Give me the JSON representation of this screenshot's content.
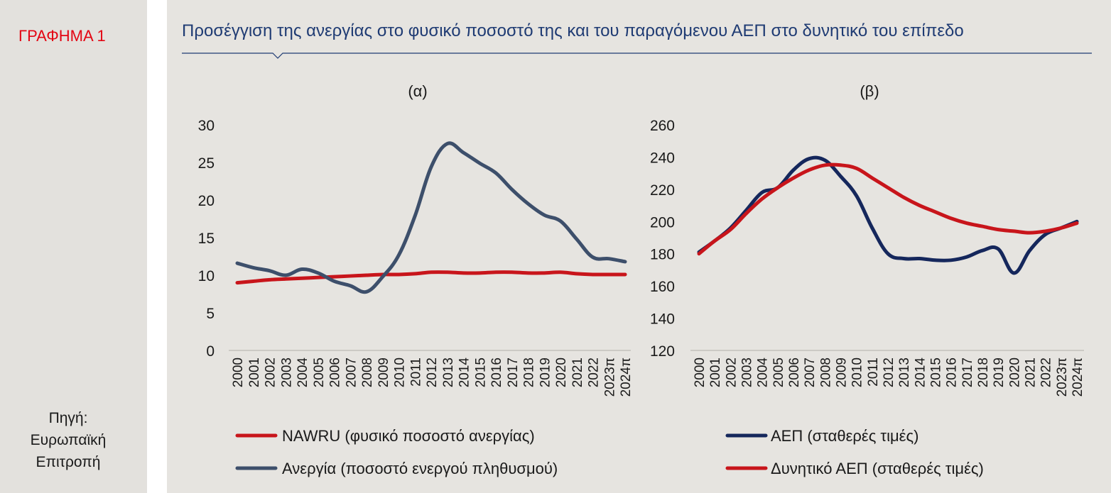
{
  "figure": {
    "label": "ΓΡΑΦΗΜΑ 1",
    "title": "Προσέγγιση της ανεργίας στο φυσικό ποσοστό της και του παραγόμενου ΑΕΠ στο δυνητικό του επίπεδο",
    "source": [
      "Πηγή:",
      "Ευρωπαϊκή",
      "Επιτροπή"
    ]
  },
  "colors": {
    "red": "#c8151b",
    "slate": "#3d4f6b",
    "navy": "#15275c",
    "title": "#1f3b73",
    "label_red": "#e30613"
  },
  "chart_data": [
    {
      "type": "line",
      "title": "(α)",
      "x": [
        "2000",
        "2001",
        "2002",
        "2003",
        "2004",
        "2005",
        "2006",
        "2007",
        "2008",
        "2009",
        "2010",
        "2011",
        "2012",
        "2013",
        "2014",
        "2015",
        "2016",
        "2017",
        "2018",
        "2019",
        "2020",
        "2021",
        "2022",
        "2023π",
        "2024π"
      ],
      "series": [
        {
          "name": "NAWRU (φυσικό ποσοστό ανεργίας)",
          "color": "#c8151b",
          "values": [
            9.0,
            9.2,
            9.4,
            9.5,
            9.6,
            9.7,
            9.8,
            9.9,
            10.0,
            10.1,
            10.1,
            10.2,
            10.4,
            10.4,
            10.3,
            10.3,
            10.4,
            10.4,
            10.3,
            10.3,
            10.4,
            10.2,
            10.1,
            10.1,
            10.1
          ]
        },
        {
          "name": "Ανεργία (ποσοστό ενεργού πληθυσμού)",
          "color": "#3d4f6b",
          "values": [
            11.6,
            11.0,
            10.6,
            10.0,
            10.8,
            10.3,
            9.2,
            8.6,
            7.8,
            9.8,
            12.7,
            17.9,
            24.4,
            27.5,
            26.3,
            24.9,
            23.6,
            21.4,
            19.5,
            18.0,
            17.2,
            14.8,
            12.4,
            12.2,
            11.8
          ]
        }
      ],
      "ylim": [
        0,
        30
      ],
      "yticks": [
        0,
        5,
        10,
        15,
        20,
        25,
        30
      ]
    },
    {
      "type": "line",
      "title": "(β)",
      "x": [
        "2000",
        "2001",
        "2002",
        "2003",
        "2004",
        "2005",
        "2006",
        "2007",
        "2008",
        "2009",
        "2010",
        "2011",
        "2012",
        "2013",
        "2014",
        "2015",
        "2016",
        "2017",
        "2018",
        "2019",
        "2020",
        "2021",
        "2022",
        "2023π",
        "2024π"
      ],
      "series": [
        {
          "name": "ΑΕΠ (σταθερές τιμές)",
          "color": "#15275c",
          "values": [
            181,
            188,
            196,
            207,
            218,
            221,
            232,
            239,
            238,
            228,
            216,
            196,
            180,
            177,
            177,
            176,
            176,
            178,
            182,
            183,
            168,
            182,
            192,
            196,
            200
          ]
        },
        {
          "name": "Δυνητικό ΑΕΠ (σταθερές τιμές)",
          "color": "#c8151b",
          "values": [
            180,
            188,
            195,
            205,
            214,
            221,
            227,
            232,
            235,
            235,
            233,
            227,
            221,
            215,
            210,
            206,
            202,
            199,
            197,
            195,
            194,
            193,
            194,
            196,
            199
          ]
        }
      ],
      "ylim": [
        120,
        260
      ],
      "yticks": [
        120,
        140,
        160,
        180,
        200,
        220,
        240,
        260
      ]
    }
  ]
}
